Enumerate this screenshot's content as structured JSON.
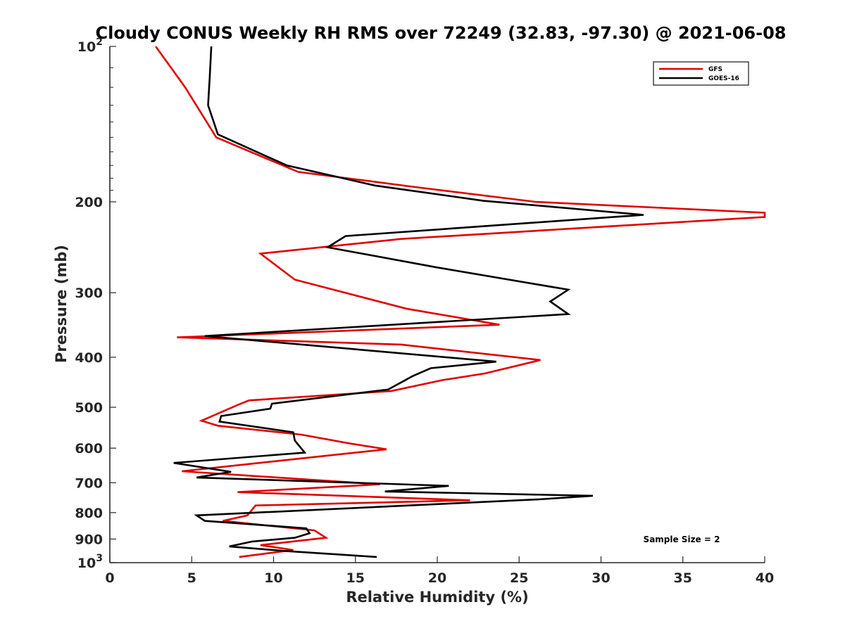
{
  "chart_data": {
    "type": "line",
    "title": "Cloudy CONUS Weekly RH RMS over 72249 (32.83, -97.30) @ 2021-06-08",
    "xlabel": "Relative Humidity (%)",
    "ylabel": "Pressure (mb)",
    "xlim": [
      0,
      40
    ],
    "ylim": [
      100,
      1000
    ],
    "y_scale": "log",
    "y_reversed": true,
    "grid": false,
    "legend_position": "top-right",
    "x_ticks": [
      "0",
      "5",
      "10",
      "15",
      "20",
      "25",
      "30",
      "35",
      "40"
    ],
    "y_ticks": [
      {
        "value": 100,
        "label": "10",
        "sup": "2"
      },
      {
        "value": 200,
        "label": "200",
        "sup": ""
      },
      {
        "value": 300,
        "label": "300",
        "sup": ""
      },
      {
        "value": 400,
        "label": "400",
        "sup": ""
      },
      {
        "value": 500,
        "label": "500",
        "sup": ""
      },
      {
        "value": 600,
        "label": "600",
        "sup": ""
      },
      {
        "value": 700,
        "label": "700",
        "sup": ""
      },
      {
        "value": 800,
        "label": "800",
        "sup": ""
      },
      {
        "value": 900,
        "label": "900",
        "sup": ""
      },
      {
        "value": 1000,
        "label": "10",
        "sup": "3"
      }
    ],
    "series": [
      {
        "name": "GFS",
        "color": "#e00000",
        "points": [
          [
            2.8,
            100
          ],
          [
            4.6,
            120
          ],
          [
            6.5,
            150
          ],
          [
            11.5,
            175
          ],
          [
            18.5,
            187
          ],
          [
            26,
            200
          ],
          [
            40,
            210
          ],
          [
            40,
            214
          ],
          [
            17.8,
            236
          ],
          [
            9.2,
            252
          ],
          [
            11.3,
            283
          ],
          [
            18.1,
            322
          ],
          [
            23.8,
            346
          ],
          [
            4.1,
            366
          ],
          [
            17.8,
            378
          ],
          [
            26.3,
            405
          ],
          [
            22.9,
            430
          ],
          [
            20.3,
            443
          ],
          [
            17.2,
            465
          ],
          [
            8.5,
            485
          ],
          [
            7.8,
            495
          ],
          [
            5.6,
            531
          ],
          [
            6.6,
            543
          ],
          [
            11.7,
            565
          ],
          [
            14.7,
            588
          ],
          [
            16.9,
            603
          ],
          [
            4.4,
            665
          ],
          [
            16.5,
            705
          ],
          [
            7.8,
            730
          ],
          [
            22,
            757
          ],
          [
            8.9,
            775
          ],
          [
            8.4,
            810
          ],
          [
            6.9,
            830
          ],
          [
            12.5,
            866
          ],
          [
            13.2,
            895
          ],
          [
            9.2,
            925
          ],
          [
            11.2,
            945
          ],
          [
            7.9,
            975
          ]
        ]
      },
      {
        "name": "GOES-16",
        "color": "#000000",
        "points": [
          [
            6.2,
            100
          ],
          [
            6.1,
            115
          ],
          [
            6.0,
            130
          ],
          [
            6.6,
            148
          ],
          [
            10.8,
            170
          ],
          [
            16.2,
            186
          ],
          [
            22.8,
            199
          ],
          [
            32.6,
            212
          ],
          [
            14.4,
            233
          ],
          [
            13.3,
            245
          ],
          [
            20,
            268
          ],
          [
            28,
            296
          ],
          [
            26.9,
            312
          ],
          [
            28,
            330
          ],
          [
            5.8,
            364
          ],
          [
            23.6,
            408
          ],
          [
            19.6,
            420
          ],
          [
            18.5,
            435
          ],
          [
            17,
            462
          ],
          [
            9.9,
            492
          ],
          [
            9.8,
            503
          ],
          [
            6.8,
            520
          ],
          [
            6.7,
            533
          ],
          [
            11.2,
            559
          ],
          [
            11.3,
            580
          ],
          [
            11.9,
            612
          ],
          [
            3.9,
            641
          ],
          [
            7.4,
            667
          ],
          [
            5.3,
            684
          ],
          [
            20.7,
            710
          ],
          [
            16.8,
            728
          ],
          [
            29.5,
            742
          ],
          [
            26.2,
            754
          ],
          [
            5.3,
            810
          ],
          [
            5.8,
            830
          ],
          [
            12,
            858
          ],
          [
            12.2,
            877
          ],
          [
            11.3,
            895
          ],
          [
            8.7,
            910
          ],
          [
            7.3,
            930
          ],
          [
            10.8,
            950
          ],
          [
            16.3,
            975
          ]
        ]
      }
    ],
    "annotation": "Sample Size = 2"
  }
}
